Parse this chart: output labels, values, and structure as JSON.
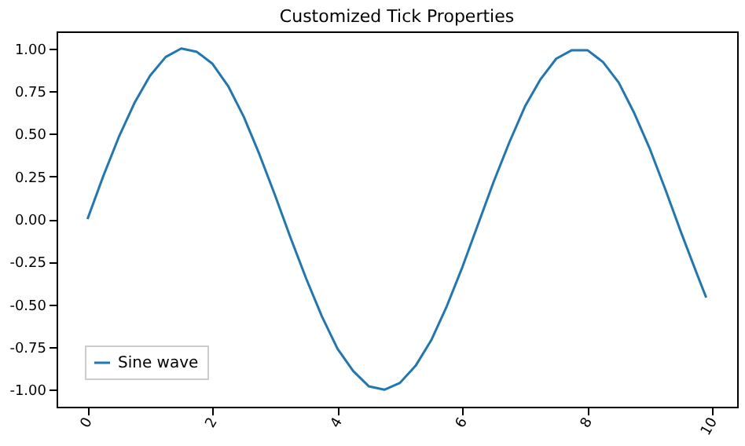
{
  "chart_data": {
    "type": "line",
    "title": "Customized Tick Properties",
    "x": [
      0,
      0.25,
      0.5,
      0.75,
      1,
      1.25,
      1.5,
      1.75,
      2,
      2.25,
      2.5,
      2.75,
      3,
      3.25,
      3.5,
      3.75,
      4,
      4.25,
      4.5,
      4.75,
      5,
      5.25,
      5.5,
      5.75,
      6,
      6.25,
      6.5,
      6.75,
      7,
      7.25,
      7.5,
      7.75,
      8,
      8.25,
      8.5,
      8.75,
      9,
      9.25,
      9.5,
      9.75,
      9.9
    ],
    "series": [
      {
        "name": "Sine wave",
        "color": "#1f77b4",
        "values": [
          0.0,
          0.25,
          0.48,
          0.68,
          0.84,
          0.95,
          1.0,
          0.98,
          0.91,
          0.78,
          0.6,
          0.38,
          0.14,
          -0.11,
          -0.35,
          -0.57,
          -0.76,
          -0.89,
          -0.98,
          -1.0,
          -0.96,
          -0.86,
          -0.71,
          -0.51,
          -0.28,
          -0.03,
          0.22,
          0.45,
          0.66,
          0.82,
          0.94,
          0.99,
          0.99,
          0.92,
          0.8,
          0.62,
          0.41,
          0.17,
          -0.08,
          -0.32,
          -0.46
        ]
      }
    ],
    "xlim": [
      -0.495,
      10.395
    ],
    "xticks": [
      0,
      2,
      4,
      6,
      8,
      10
    ],
    "ylim": [
      -1.1,
      1.1
    ],
    "yticks": [
      {
        "value": -1,
        "label": "-1.00"
      },
      {
        "value": -0.75,
        "label": "-0.75"
      },
      {
        "value": -0.5,
        "label": "-0.50"
      },
      {
        "value": -0.25,
        "label": "-0.25"
      },
      {
        "value": 0,
        "label": "0.00"
      },
      {
        "value": 0.25,
        "label": "0.25"
      },
      {
        "value": 0.5,
        "label": "0.50"
      },
      {
        "value": 0.75,
        "label": "0.75"
      },
      {
        "value": 1,
        "label": "1.00"
      }
    ],
    "legend": "bottom left",
    "grid": false
  }
}
